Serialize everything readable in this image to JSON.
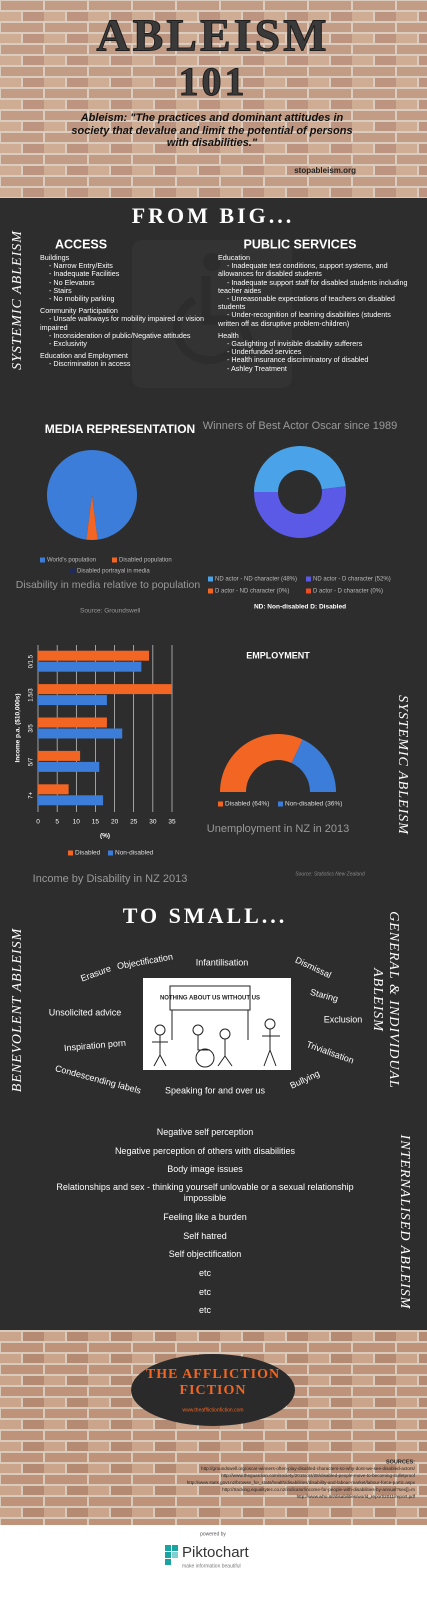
{
  "header": {
    "title_line1": "ABLEISM",
    "title_line2": "101",
    "quote": "Ableism: \"The practices and dominant attitudes in society that devalue and limit the potential of persons with disabilities.\"",
    "source": "stopableism.org"
  },
  "big": {
    "heading": "FROM BIG...",
    "side_label": "SYSTEMIC ABLEISM",
    "access": {
      "title": "ACCESS",
      "groups": [
        {
          "heading": "Buildings",
          "items": [
            "- Narrow Entry/Exits",
            "- Inadequate Facilities",
            "- No Elevators",
            "- Stairs",
            "- No mobility parking"
          ]
        },
        {
          "heading": "Community Participation",
          "items": [
            "- Unsafe walkways for mobility impaired or vision impaired",
            "- Inconsideration of public/Negative attitudes",
            "- Exclusivity"
          ]
        },
        {
          "heading": "Education and Employment",
          "items": [
            "- Discrimination in access"
          ]
        }
      ]
    },
    "public_services": {
      "title": "PUBLIC SERVICES",
      "groups": [
        {
          "heading": "Education",
          "items": [
            "- Inadequate test conditions, support systems, and allowances for disabled students",
            "- Inadequate support staff for disabled students including teacher aides",
            "- Unreasonable expectations of teachers on disabled students",
            "- Under-recognition of learning disabilities (students written off as disruptive problem-children)"
          ]
        },
        {
          "heading": "Health",
          "items": [
            "- Gaslighting of invisible disability sufferers",
            "- Underfunded services",
            "- Health insurance discriminatory of disabled",
            "- Ashley Treatment"
          ]
        }
      ]
    }
  },
  "chart_data": [
    {
      "type": "pie",
      "section_title": "MEDIA REPRESENTATION",
      "title": "Disability in media relative to population",
      "source": "Source: Groundswell",
      "categories": [
        "World's population",
        "Disabled population",
        "Disabled portrayal in media"
      ],
      "values": [
        96,
        4,
        0
      ],
      "colors": [
        "#3b7dd8",
        "#f26522",
        "#1f2a5a"
      ]
    },
    {
      "type": "donut",
      "title": "Winners of Best Actor Oscar since 1989",
      "categories": [
        "ND actor - ND character (48%)",
        "ND actor - D character (52%)",
        "D actor - ND character (0%)",
        "D actor - D character (0%)"
      ],
      "values": [
        48,
        52,
        0,
        0
      ],
      "colors": [
        "#4aa3e8",
        "#5a5ae6",
        "#f26522",
        "#e84d25"
      ],
      "note": "ND: Non-disabled  D: Disabled"
    },
    {
      "type": "bar",
      "orientation": "horizontal",
      "title": "Income by Disability in NZ 2013",
      "y_label": "Income p.a. ($10,000s)",
      "x_label": "(%)",
      "categories": [
        "0/1.5",
        "1.5/3",
        "3/5",
        "5/7",
        "7+"
      ],
      "series": [
        {
          "name": "Disabled",
          "color": "#f26522",
          "values": [
            29,
            35,
            18,
            11,
            8
          ]
        },
        {
          "name": "Non-disabled",
          "color": "#3b7dd8",
          "values": [
            27,
            18,
            22,
            16,
            17
          ]
        }
      ],
      "xlim": [
        0,
        35
      ],
      "xticks": [
        0,
        5,
        10,
        15,
        20,
        25,
        30,
        35
      ],
      "grid": true
    },
    {
      "type": "semi-donut",
      "section_title": "EMPLOYMENT",
      "title": "Unemployment in NZ in 2013",
      "source": "Source: Statistics New Zealand",
      "side_label": "SYSTEMIC ABLEISM",
      "categories": [
        "Disabled (64%)",
        "Non-disabled (36%)"
      ],
      "values": [
        64,
        36
      ],
      "colors": [
        "#f26522",
        "#3b7dd8"
      ]
    }
  ],
  "small": {
    "heading": "TO SMALL...",
    "side_left": "BENEVOLENT ABLEISM",
    "side_right": [
      "GENERAL & INDIVIDUAL",
      "ABLEISM"
    ],
    "image_text": "NOTHING ABOUT US WITHOUT US",
    "words": [
      "Objectification",
      "Infantilisation",
      "Dismissal",
      "Erasure",
      "Staring",
      "Unsolicited advice",
      "Exclusion",
      "Inspiration porn",
      "Trivialisation",
      "Condescending labels",
      "Bullying",
      "Speaking for and over us"
    ]
  },
  "internalised": {
    "side_label": "INTERNALISED ABLEISM",
    "items": [
      "Negative self perception",
      "Negative perception of others with disabilities",
      "Body image issues",
      "Relationships and sex - thinking yourself unlovable or a sexual relationship impossible",
      "Feeling like a burden",
      "Self hatred",
      "Self objectification",
      "etc",
      "etc",
      "etc"
    ]
  },
  "footer": {
    "brand_line1": "THE AFFLICTION",
    "brand_line2": "FICTION",
    "url": "www.theafflictionfiction.com",
    "sources_title": "SOURCES:",
    "sources": [
      "http://groundswell.org/oscar-winners-often-play-disabled-characters-so-why-dont-we-see-disabled-actors/",
      "http://www.theguardian.com/society/2015/oct/28/disabled-people-move-to-becoming-bulletproof",
      "http://www.stats.govt.nz/browse_for_stats/health/disabilities/disability-and-labour-market/labour-force-partic.aspx",
      "http://tracking.equalitytec.co.nz/indicator/income-for-people-with-disabilities-by-annual?sex[]=m",
      "http://www.who.int/disabilities/world_report/2011/report.pdf"
    ]
  },
  "powered": {
    "label": "powered by",
    "brand": "Piktochart",
    "tagline": "make information beautiful"
  }
}
